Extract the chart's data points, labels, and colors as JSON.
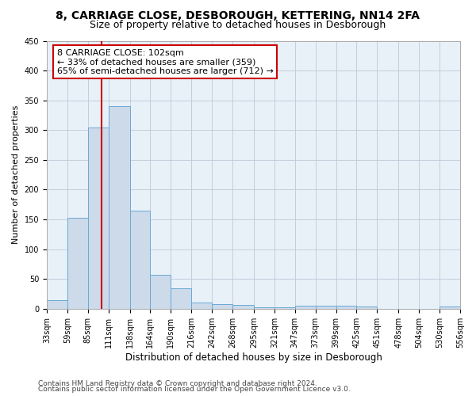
{
  "title": "8, CARRIAGE CLOSE, DESBOROUGH, KETTERING, NN14 2FA",
  "subtitle": "Size of property relative to detached houses in Desborough",
  "xlabel": "Distribution of detached houses by size in Desborough",
  "ylabel": "Number of detached properties",
  "bar_color": "#ccdaea",
  "bar_edge_color": "#6aaad4",
  "background_color": "#ffffff",
  "plot_bg_color": "#e8f0f8",
  "grid_color": "#c0c8d8",
  "bin_edges": [
    33,
    59,
    85,
    111,
    138,
    164,
    190,
    216,
    242,
    268,
    295,
    321,
    347,
    373,
    399,
    425,
    451,
    478,
    504,
    530,
    556
  ],
  "bar_heights": [
    15,
    153,
    305,
    340,
    165,
    57,
    35,
    10,
    8,
    6,
    3,
    2,
    5,
    5,
    5,
    4,
    0,
    0,
    0,
    4
  ],
  "property_size": 102,
  "vline_color": "#cc0000",
  "annot_line1": "8 CARRIAGE CLOSE: 102sqm",
  "annot_line2": "← 33% of detached houses are smaller (359)",
  "annot_line3": "65% of semi-detached houses are larger (712) →",
  "annotation_box_color": "#ffffff",
  "annotation_border_color": "#cc0000",
  "ylim": [
    0,
    450
  ],
  "yticks": [
    0,
    50,
    100,
    150,
    200,
    250,
    300,
    350,
    400,
    450
  ],
  "footnote1": "Contains HM Land Registry data © Crown copyright and database right 2024.",
  "footnote2": "Contains public sector information licensed under the Open Government Licence v3.0.",
  "title_fontsize": 10,
  "subtitle_fontsize": 9,
  "xlabel_fontsize": 8.5,
  "ylabel_fontsize": 8,
  "tick_fontsize": 7,
  "annot_fontsize": 8,
  "footnote_fontsize": 6.5
}
